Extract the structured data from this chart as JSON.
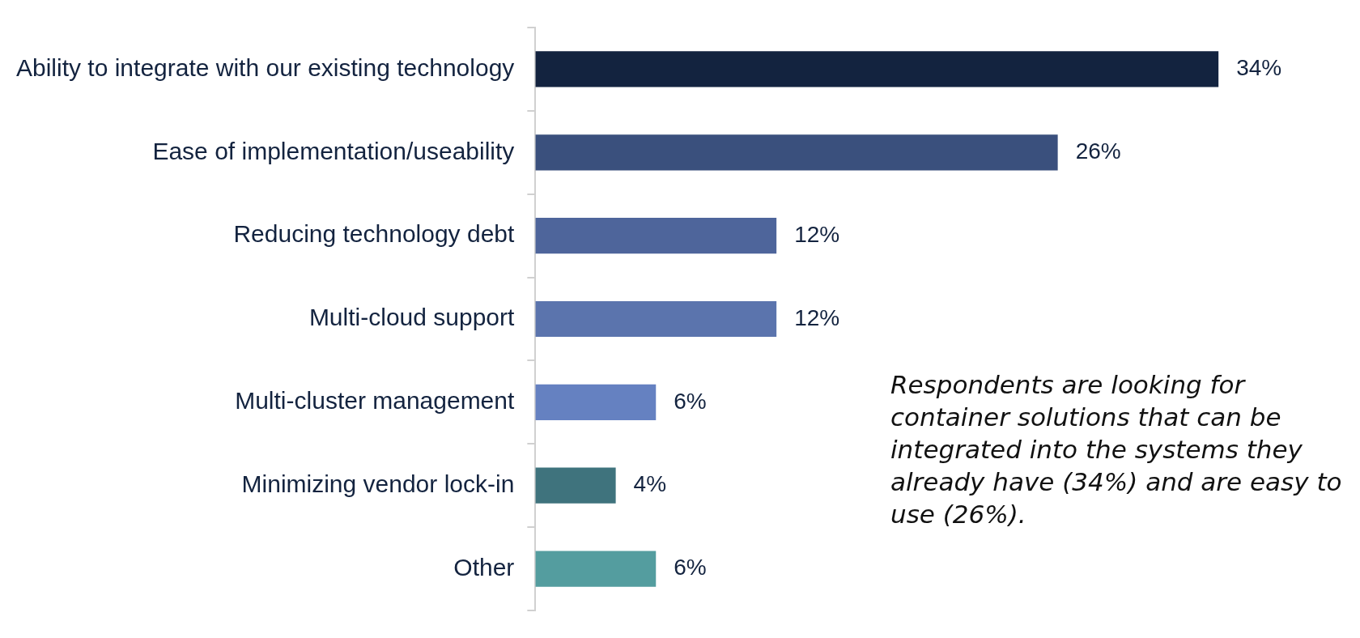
{
  "chart_data": {
    "type": "bar",
    "orientation": "horizontal",
    "categories": [
      "Ability to integrate with our existing technology",
      "Ease of implementation/useability",
      "Reducing technology debt",
      "Multi-cloud support",
      "Multi-cluster management",
      "Minimizing vendor lock-in",
      "Other"
    ],
    "values": [
      34,
      26,
      12,
      12,
      6,
      4,
      6
    ],
    "colors": [
      "#13233f",
      "#3a507d",
      "#4e659b",
      "#5b74ad",
      "#6581c1",
      "#3f737d",
      "#549d9f"
    ],
    "value_labels": [
      "34%",
      "26%",
      "12%",
      "12%",
      "6%",
      "4%",
      "6%"
    ],
    "tick_labels": "y",
    "grid": false,
    "legend": false,
    "annotations": [
      "Respondents are looking for container solutions that can be integrated into the systems they already have (34%) and are easy to use (26%)."
    ]
  }
}
